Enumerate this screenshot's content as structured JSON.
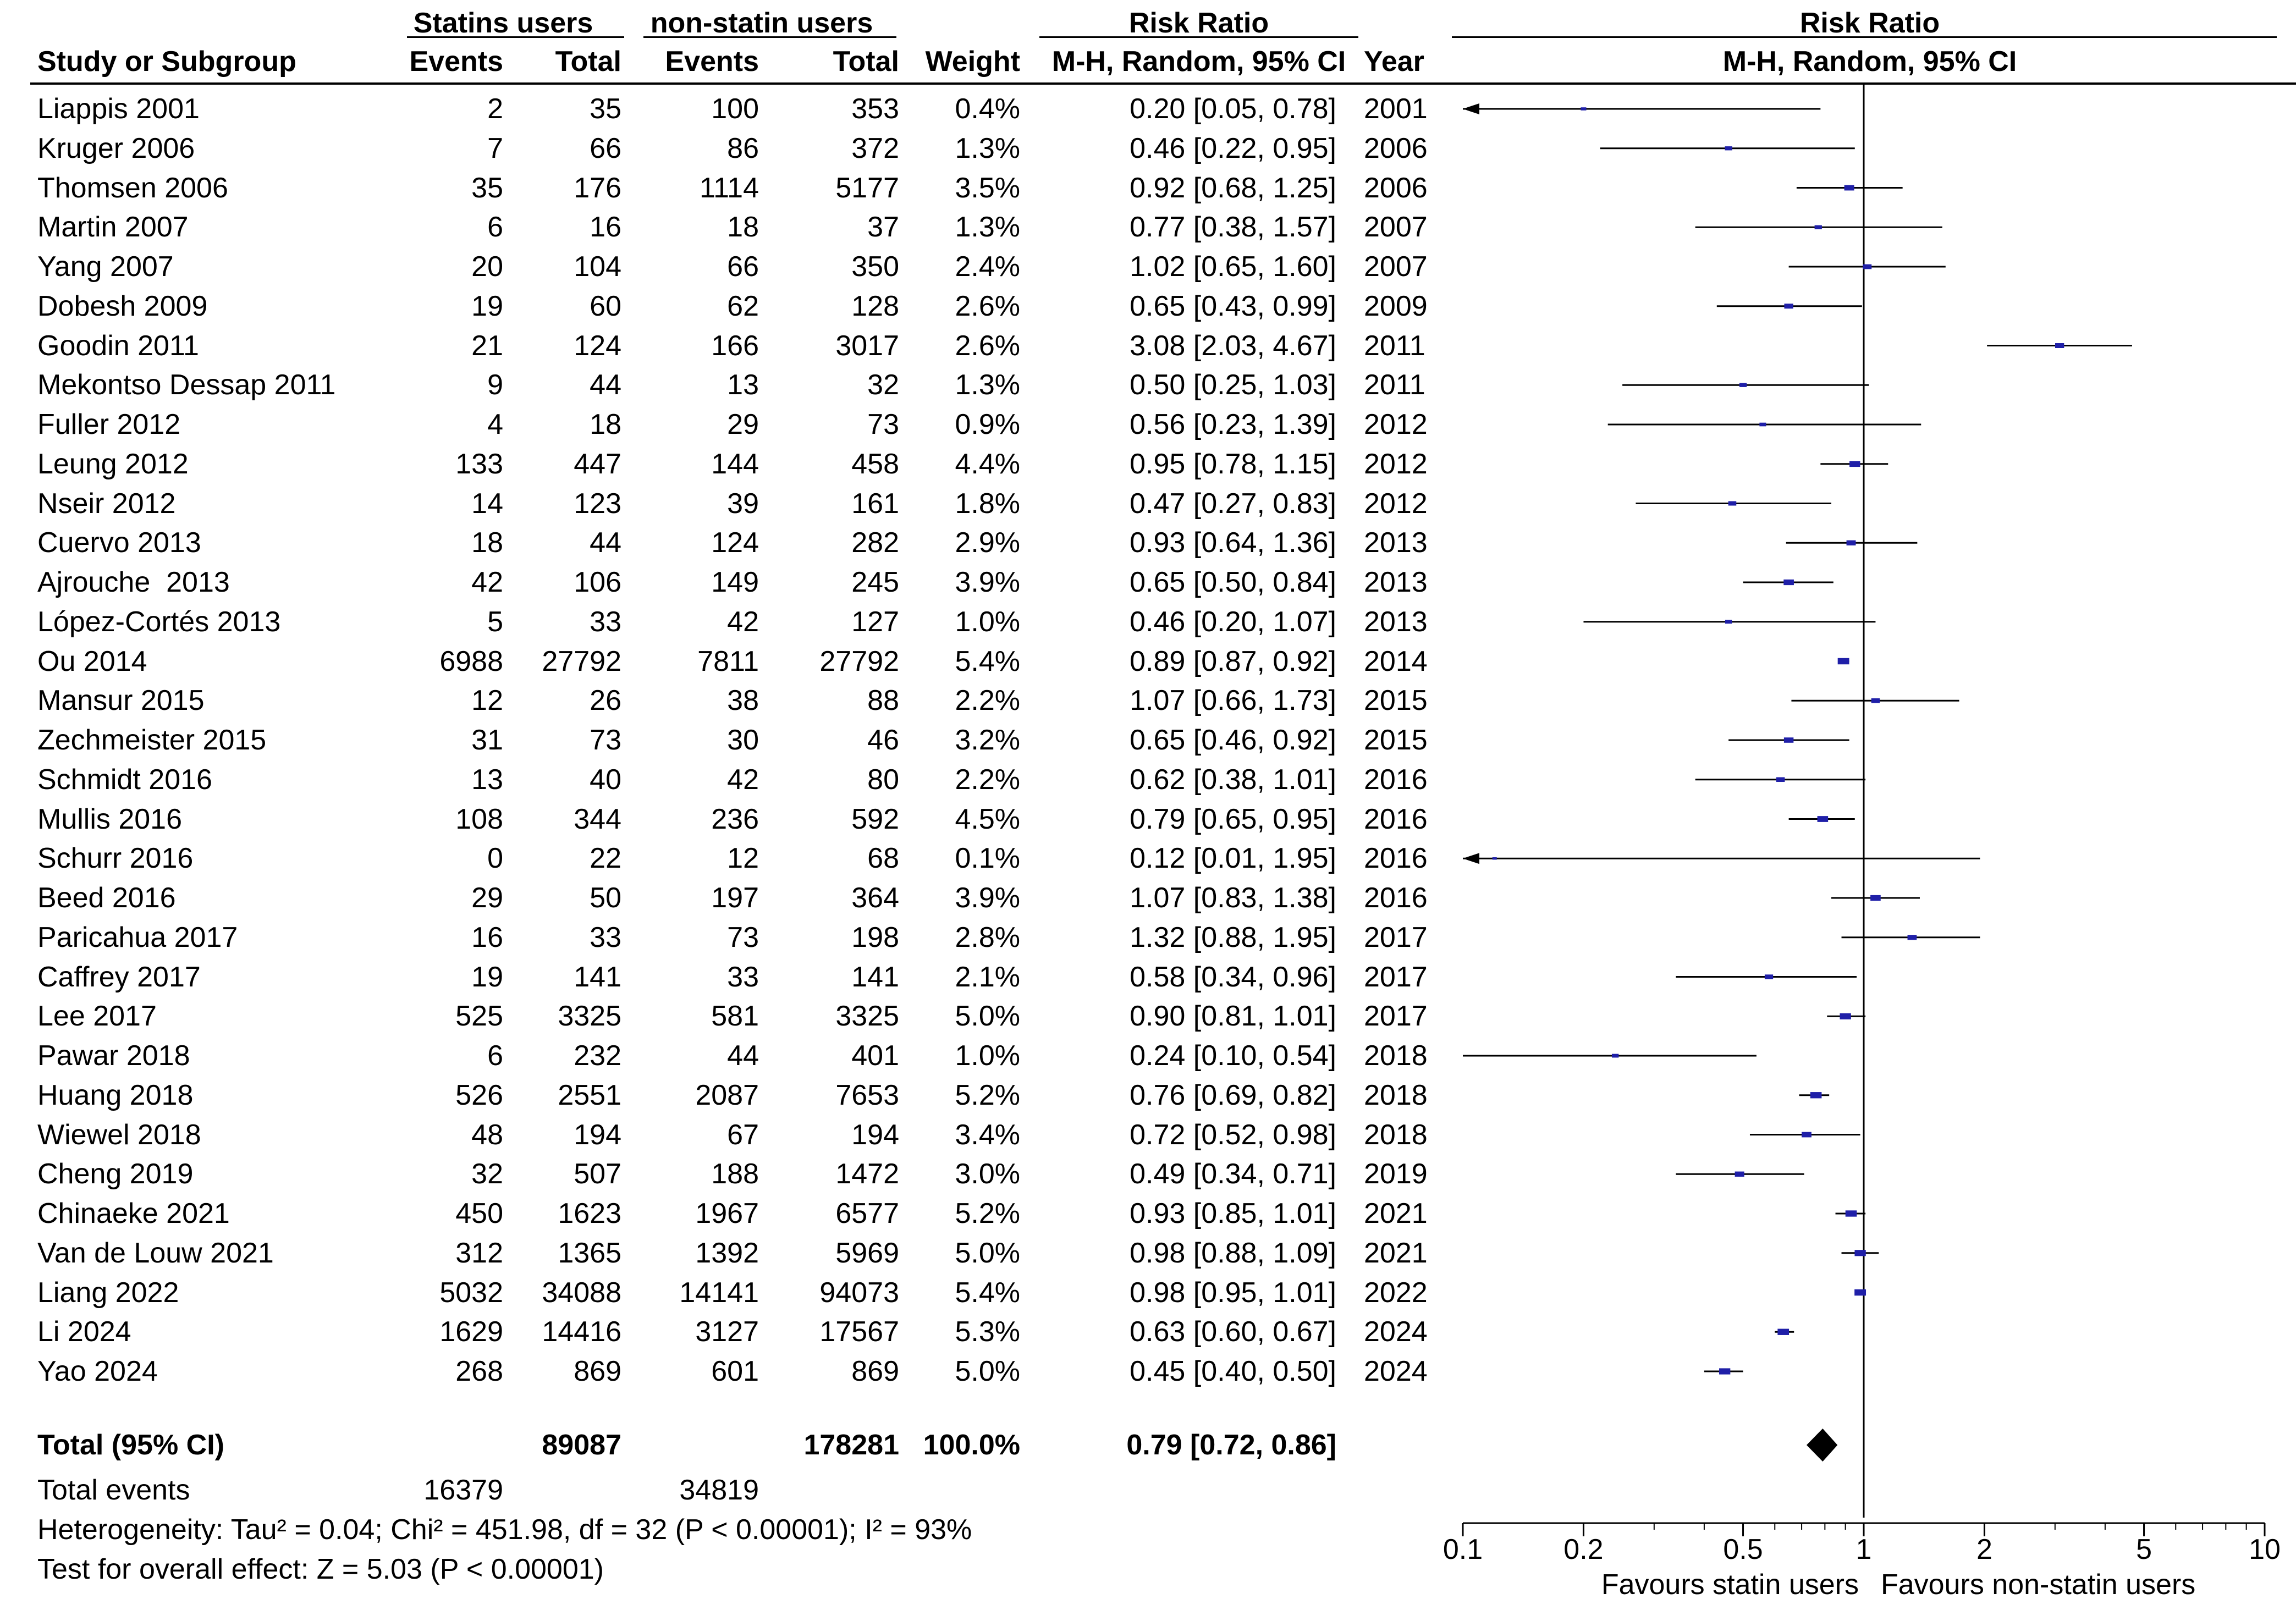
{
  "header": {
    "group1": "Statins users",
    "group2": "non-statin users",
    "rr_title_left": "Risk Ratio",
    "rr_title_right": "Risk Ratio",
    "study_col": "Study or Subgroup",
    "events1": "Events",
    "total1": "Total",
    "events2": "Events",
    "total2": "Total",
    "weight": "Weight",
    "method_left": "M-H, Random, 95% CI",
    "year": "Year",
    "method_right": "M-H, Random, 95% CI"
  },
  "chart_data": {
    "type": "forest",
    "x_scale": "log",
    "x_ticks": [
      0.1,
      0.2,
      0.5,
      1,
      2,
      5,
      10
    ],
    "x_tick_labels": [
      "0.1",
      "0.2",
      "0.5",
      "1",
      "2",
      "5",
      "10"
    ],
    "xlim": [
      0.1,
      10
    ],
    "favours_left": "Favours statin users",
    "favours_right": "Favours non-statin users",
    "studies": [
      {
        "name": "Liappis 2001",
        "e1": "2",
        "n1": "35",
        "e2": "100",
        "n2": "353",
        "weight": "0.4%",
        "ci_text": "0.20 [0.05, 0.78]",
        "year": "2001",
        "rr": 0.2,
        "lo": 0.05,
        "hi": 0.78
      },
      {
        "name": "Kruger 2006",
        "e1": "7",
        "n1": "66",
        "e2": "86",
        "n2": "372",
        "weight": "1.3%",
        "ci_text": "0.46 [0.22, 0.95]",
        "year": "2006",
        "rr": 0.46,
        "lo": 0.22,
        "hi": 0.95
      },
      {
        "name": "Thomsen 2006",
        "e1": "35",
        "n1": "176",
        "e2": "1114",
        "n2": "5177",
        "weight": "3.5%",
        "ci_text": "0.92 [0.68, 1.25]",
        "year": "2006",
        "rr": 0.92,
        "lo": 0.68,
        "hi": 1.25
      },
      {
        "name": "Martin 2007",
        "e1": "6",
        "n1": "16",
        "e2": "18",
        "n2": "37",
        "weight": "1.3%",
        "ci_text": "0.77 [0.38, 1.57]",
        "year": "2007",
        "rr": 0.77,
        "lo": 0.38,
        "hi": 1.57
      },
      {
        "name": "Yang 2007",
        "e1": "20",
        "n1": "104",
        "e2": "66",
        "n2": "350",
        "weight": "2.4%",
        "ci_text": "1.02 [0.65, 1.60]",
        "year": "2007",
        "rr": 1.02,
        "lo": 0.65,
        "hi": 1.6
      },
      {
        "name": "Dobesh 2009",
        "e1": "19",
        "n1": "60",
        "e2": "62",
        "n2": "128",
        "weight": "2.6%",
        "ci_text": "0.65 [0.43, 0.99]",
        "year": "2009",
        "rr": 0.65,
        "lo": 0.43,
        "hi": 0.99
      },
      {
        "name": "Goodin 2011",
        "e1": "21",
        "n1": "124",
        "e2": "166",
        "n2": "3017",
        "weight": "2.6%",
        "ci_text": "3.08 [2.03, 4.67]",
        "year": "2011",
        "rr": 3.08,
        "lo": 2.03,
        "hi": 4.67
      },
      {
        "name": "Mekontso Dessap 2011",
        "e1": "9",
        "n1": "44",
        "e2": "13",
        "n2": "32",
        "weight": "1.3%",
        "ci_text": "0.50 [0.25, 1.03]",
        "year": "2011",
        "rr": 0.5,
        "lo": 0.25,
        "hi": 1.03
      },
      {
        "name": "Fuller 2012",
        "e1": "4",
        "n1": "18",
        "e2": "29",
        "n2": "73",
        "weight": "0.9%",
        "ci_text": "0.56 [0.23, 1.39]",
        "year": "2012",
        "rr": 0.56,
        "lo": 0.23,
        "hi": 1.39
      },
      {
        "name": "Leung 2012",
        "e1": "133",
        "n1": "447",
        "e2": "144",
        "n2": "458",
        "weight": "4.4%",
        "ci_text": "0.95 [0.78, 1.15]",
        "year": "2012",
        "rr": 0.95,
        "lo": 0.78,
        "hi": 1.15
      },
      {
        "name": "Nseir 2012",
        "e1": "14",
        "n1": "123",
        "e2": "39",
        "n2": "161",
        "weight": "1.8%",
        "ci_text": "0.47 [0.27, 0.83]",
        "year": "2012",
        "rr": 0.47,
        "lo": 0.27,
        "hi": 0.83
      },
      {
        "name": "Cuervo 2013",
        "e1": "18",
        "n1": "44",
        "e2": "124",
        "n2": "282",
        "weight": "2.9%",
        "ci_text": "0.93 [0.64, 1.36]",
        "year": "2013",
        "rr": 0.93,
        "lo": 0.64,
        "hi": 1.36
      },
      {
        "name": "Ajrouche  2013",
        "e1": "42",
        "n1": "106",
        "e2": "149",
        "n2": "245",
        "weight": "3.9%",
        "ci_text": "0.65 [0.50, 0.84]",
        "year": "2013",
        "rr": 0.65,
        "lo": 0.5,
        "hi": 0.84
      },
      {
        "name": "López-Cortés 2013",
        "e1": "5",
        "n1": "33",
        "e2": "42",
        "n2": "127",
        "weight": "1.0%",
        "ci_text": "0.46 [0.20, 1.07]",
        "year": "2013",
        "rr": 0.46,
        "lo": 0.2,
        "hi": 1.07
      },
      {
        "name": "Ou 2014",
        "e1": "6988",
        "n1": "27792",
        "e2": "7811",
        "n2": "27792",
        "weight": "5.4%",
        "ci_text": "0.89 [0.87, 0.92]",
        "year": "2014",
        "rr": 0.89,
        "lo": 0.87,
        "hi": 0.92
      },
      {
        "name": "Mansur 2015",
        "e1": "12",
        "n1": "26",
        "e2": "38",
        "n2": "88",
        "weight": "2.2%",
        "ci_text": "1.07 [0.66, 1.73]",
        "year": "2015",
        "rr": 1.07,
        "lo": 0.66,
        "hi": 1.73
      },
      {
        "name": "Zechmeister 2015",
        "e1": "31",
        "n1": "73",
        "e2": "30",
        "n2": "46",
        "weight": "3.2%",
        "ci_text": "0.65 [0.46, 0.92]",
        "year": "2015",
        "rr": 0.65,
        "lo": 0.46,
        "hi": 0.92
      },
      {
        "name": "Schmidt 2016",
        "e1": "13",
        "n1": "40",
        "e2": "42",
        "n2": "80",
        "weight": "2.2%",
        "ci_text": "0.62 [0.38, 1.01]",
        "year": "2016",
        "rr": 0.62,
        "lo": 0.38,
        "hi": 1.01
      },
      {
        "name": "Mullis 2016",
        "e1": "108",
        "n1": "344",
        "e2": "236",
        "n2": "592",
        "weight": "4.5%",
        "ci_text": "0.79 [0.65, 0.95]",
        "year": "2016",
        "rr": 0.79,
        "lo": 0.65,
        "hi": 0.95
      },
      {
        "name": "Schurr 2016",
        "e1": "0",
        "n1": "22",
        "e2": "12",
        "n2": "68",
        "weight": "0.1%",
        "ci_text": "0.12 [0.01, 1.95]",
        "year": "2016",
        "rr": 0.12,
        "lo": 0.01,
        "hi": 1.95
      },
      {
        "name": "Beed 2016",
        "e1": "29",
        "n1": "50",
        "e2": "197",
        "n2": "364",
        "weight": "3.9%",
        "ci_text": "1.07 [0.83, 1.38]",
        "year": "2016",
        "rr": 1.07,
        "lo": 0.83,
        "hi": 1.38
      },
      {
        "name": "Paricahua 2017",
        "e1": "16",
        "n1": "33",
        "e2": "73",
        "n2": "198",
        "weight": "2.8%",
        "ci_text": "1.32 [0.88, 1.95]",
        "year": "2017",
        "rr": 1.32,
        "lo": 0.88,
        "hi": 1.95
      },
      {
        "name": "Caffrey 2017",
        "e1": "19",
        "n1": "141",
        "e2": "33",
        "n2": "141",
        "weight": "2.1%",
        "ci_text": "0.58 [0.34, 0.96]",
        "year": "2017",
        "rr": 0.58,
        "lo": 0.34,
        "hi": 0.96
      },
      {
        "name": "Lee 2017",
        "e1": "525",
        "n1": "3325",
        "e2": "581",
        "n2": "3325",
        "weight": "5.0%",
        "ci_text": "0.90 [0.81, 1.01]",
        "year": "2017",
        "rr": 0.9,
        "lo": 0.81,
        "hi": 1.01
      },
      {
        "name": "Pawar 2018",
        "e1": "6",
        "n1": "232",
        "e2": "44",
        "n2": "401",
        "weight": "1.0%",
        "ci_text": "0.24 [0.10, 0.54]",
        "year": "2018",
        "rr": 0.24,
        "lo": 0.1,
        "hi": 0.54
      },
      {
        "name": "Huang 2018",
        "e1": "526",
        "n1": "2551",
        "e2": "2087",
        "n2": "7653",
        "weight": "5.2%",
        "ci_text": "0.76 [0.69, 0.82]",
        "year": "2018",
        "rr": 0.76,
        "lo": 0.69,
        "hi": 0.82
      },
      {
        "name": "Wiewel 2018",
        "e1": "48",
        "n1": "194",
        "e2": "67",
        "n2": "194",
        "weight": "3.4%",
        "ci_text": "0.72 [0.52, 0.98]",
        "year": "2018",
        "rr": 0.72,
        "lo": 0.52,
        "hi": 0.98
      },
      {
        "name": "Cheng 2019",
        "e1": "32",
        "n1": "507",
        "e2": "188",
        "n2": "1472",
        "weight": "3.0%",
        "ci_text": "0.49 [0.34, 0.71]",
        "year": "2019",
        "rr": 0.49,
        "lo": 0.34,
        "hi": 0.71
      },
      {
        "name": "Chinaeke 2021",
        "e1": "450",
        "n1": "1623",
        "e2": "1967",
        "n2": "6577",
        "weight": "5.2%",
        "ci_text": "0.93 [0.85, 1.01]",
        "year": "2021",
        "rr": 0.93,
        "lo": 0.85,
        "hi": 1.01
      },
      {
        "name": "Van de Louw 2021",
        "e1": "312",
        "n1": "1365",
        "e2": "1392",
        "n2": "5969",
        "weight": "5.0%",
        "ci_text": "0.98 [0.88, 1.09]",
        "year": "2021",
        "rr": 0.98,
        "lo": 0.88,
        "hi": 1.09
      },
      {
        "name": "Liang 2022",
        "e1": "5032",
        "n1": "34088",
        "e2": "14141",
        "n2": "94073",
        "weight": "5.4%",
        "ci_text": "0.98 [0.95, 1.01]",
        "year": "2022",
        "rr": 0.98,
        "lo": 0.95,
        "hi": 1.01
      },
      {
        "name": "Li 2024",
        "e1": "1629",
        "n1": "14416",
        "e2": "3127",
        "n2": "17567",
        "weight": "5.3%",
        "ci_text": "0.63 [0.60, 0.67]",
        "year": "2024",
        "rr": 0.63,
        "lo": 0.6,
        "hi": 0.67
      },
      {
        "name": "Yao 2024",
        "e1": "268",
        "n1": "869",
        "e2": "601",
        "n2": "869",
        "weight": "5.0%",
        "ci_text": "0.45 [0.40, 0.50]",
        "year": "2024",
        "rr": 0.45,
        "lo": 0.4,
        "hi": 0.5
      }
    ],
    "total": {
      "label": "Total (95% CI)",
      "n1": "89087",
      "n2": "178281",
      "weight": "100.0%",
      "ci_text": "0.79 [0.72, 0.86]",
      "rr": 0.79,
      "lo": 0.72,
      "hi": 0.86
    },
    "total_events": {
      "label": "Total events",
      "e1": "16379",
      "e2": "34819"
    },
    "heterogeneity": "Heterogeneity: Tau² = 0.04; Chi² = 451.98, df = 32 (P < 0.00001); I² = 93%",
    "overall_effect": "Test for overall effect: Z = 5.03 (P < 0.00001)",
    "colors": {
      "marker": "#1f1fa8",
      "line": "#000000",
      "diamond": "#000000"
    }
  }
}
